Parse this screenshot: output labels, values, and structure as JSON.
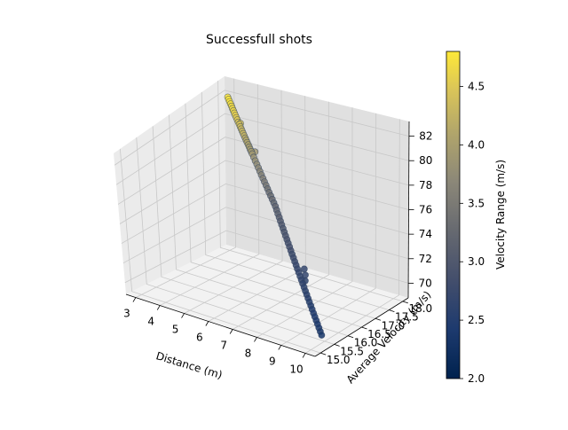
{
  "chart_data": {
    "type": "scatter",
    "projection": "3d",
    "title": "Successfull shots",
    "xlabel": "Distance (m)",
    "ylabel": "Average Velocity (m/s)",
    "zlabel": "",
    "xlim": [
      2.6,
      10.4
    ],
    "ylim": [
      14.8,
      18.2
    ],
    "zlim": [
      68.8,
      83.2
    ],
    "xticks": [
      3,
      4,
      5,
      6,
      7,
      8,
      9,
      10
    ],
    "yticks": [
      "15.0",
      "15.5",
      "16.0",
      "16.5",
      "17.0",
      "17.5",
      "18.0"
    ],
    "zticks": [
      70,
      72,
      74,
      76,
      78,
      80,
      82
    ],
    "grid": true,
    "colorbar": {
      "label": "Velocity Range (m/s)",
      "range": [
        2.0,
        4.8
      ],
      "ticks": [
        "2.0",
        "2.5",
        "3.0",
        "3.5",
        "4.0",
        "4.5"
      ],
      "colormap": "cividis"
    },
    "series": [
      {
        "points": [
          [
            3.0,
            18.0,
            82.0,
            4.8
          ],
          [
            3.08,
            17.97,
            81.9,
            4.77
          ],
          [
            3.16,
            17.94,
            81.8,
            4.74
          ],
          [
            3.24,
            17.91,
            81.7,
            4.71
          ],
          [
            3.32,
            17.88,
            81.6,
            4.68
          ],
          [
            3.4,
            17.85,
            81.5,
            4.65
          ],
          [
            3.48,
            17.82,
            81.4,
            4.62
          ],
          [
            3.56,
            17.79,
            81.3,
            4.59
          ],
          [
            3.64,
            17.76,
            81.2,
            4.56
          ],
          [
            3.72,
            17.73,
            81.1,
            4.53
          ],
          [
            3.8,
            17.7,
            81.0,
            4.5
          ],
          [
            3.88,
            17.67,
            80.9,
            4.46
          ],
          [
            3.96,
            17.64,
            80.8,
            4.42
          ],
          [
            4.04,
            17.61,
            80.7,
            4.38
          ],
          [
            4.12,
            17.58,
            80.6,
            4.34
          ],
          [
            4.2,
            17.55,
            80.5,
            4.3
          ],
          [
            4.28,
            17.52,
            80.4,
            4.26
          ],
          [
            4.36,
            17.49,
            80.3,
            4.22
          ],
          [
            4.44,
            17.46,
            80.2,
            4.18
          ],
          [
            4.52,
            17.43,
            80.1,
            4.14
          ],
          [
            4.6,
            17.4,
            80.0,
            4.1
          ],
          [
            4.68,
            17.37,
            79.9,
            4.06
          ],
          [
            4.76,
            17.34,
            79.8,
            4.02
          ],
          [
            4.84,
            17.31,
            79.7,
            3.98
          ],
          [
            4.92,
            17.28,
            79.6,
            3.94
          ],
          [
            5.0,
            17.25,
            79.5,
            3.9
          ],
          [
            5.1,
            17.22,
            79.3,
            3.85
          ],
          [
            5.2,
            17.19,
            79.1,
            3.8
          ],
          [
            5.3,
            17.16,
            78.9,
            3.75
          ],
          [
            5.4,
            17.13,
            78.7,
            3.7
          ],
          [
            5.5,
            17.1,
            78.5,
            3.65
          ],
          [
            5.6,
            17.07,
            78.3,
            3.6
          ],
          [
            5.7,
            17.04,
            78.1,
            3.55
          ],
          [
            5.8,
            17.01,
            77.9,
            3.5
          ],
          [
            5.9,
            16.98,
            77.7,
            3.45
          ],
          [
            6.0,
            16.95,
            77.5,
            3.4
          ],
          [
            6.1,
            16.92,
            77.3,
            3.36
          ],
          [
            6.2,
            16.89,
            77.1,
            3.32
          ],
          [
            6.3,
            16.86,
            76.9,
            3.28
          ],
          [
            6.4,
            16.83,
            76.7,
            3.24
          ],
          [
            6.5,
            16.8,
            76.5,
            3.2
          ],
          [
            6.6,
            16.76,
            76.3,
            3.17
          ],
          [
            6.7,
            16.72,
            76.1,
            3.14
          ],
          [
            6.8,
            16.68,
            75.9,
            3.11
          ],
          [
            6.9,
            16.64,
            75.7,
            3.08
          ],
          [
            7.0,
            16.6,
            75.5,
            3.05
          ],
          [
            7.1,
            16.56,
            75.3,
            3.02
          ],
          [
            7.2,
            16.52,
            75.1,
            2.99
          ],
          [
            7.3,
            16.48,
            74.9,
            2.96
          ],
          [
            7.4,
            16.44,
            74.7,
            2.93
          ],
          [
            7.5,
            16.4,
            74.5,
            2.9
          ],
          [
            7.6,
            16.36,
            74.3,
            2.87
          ],
          [
            7.7,
            16.32,
            74.1,
            2.84
          ],
          [
            7.8,
            16.28,
            73.9,
            2.81
          ],
          [
            7.9,
            16.24,
            73.7,
            2.78
          ],
          [
            8.0,
            16.2,
            73.5,
            2.75
          ],
          [
            8.1,
            16.16,
            73.3,
            2.73
          ],
          [
            8.2,
            16.12,
            73.1,
            2.71
          ],
          [
            8.3,
            16.08,
            72.9,
            2.69
          ],
          [
            8.4,
            16.04,
            72.7,
            2.67
          ],
          [
            8.5,
            16.0,
            72.5,
            2.65
          ],
          [
            8.6,
            15.96,
            72.3,
            2.63
          ],
          [
            8.7,
            15.92,
            72.1,
            2.61
          ],
          [
            8.8,
            15.88,
            71.9,
            2.59
          ],
          [
            8.9,
            15.84,
            71.7,
            2.57
          ],
          [
            9.0,
            15.8,
            71.5,
            2.55
          ],
          [
            9.1,
            15.76,
            71.3,
            2.53
          ],
          [
            9.2,
            15.72,
            71.1,
            2.51
          ],
          [
            9.3,
            15.68,
            70.9,
            2.49
          ],
          [
            9.4,
            15.64,
            70.7,
            2.47
          ],
          [
            9.5,
            15.6,
            70.5,
            2.45
          ],
          [
            9.6,
            15.56,
            70.3,
            2.43
          ],
          [
            9.7,
            15.52,
            70.1,
            2.41
          ],
          [
            9.8,
            15.48,
            69.9,
            2.39
          ],
          [
            9.9,
            15.44,
            69.7,
            2.37
          ],
          [
            10.0,
            15.4,
            69.5,
            2.35
          ],
          [
            8.55,
            16.1,
            72.8,
            2.66
          ],
          [
            8.45,
            16.15,
            73.2,
            2.68
          ],
          [
            8.6,
            16.05,
            72.4,
            2.62
          ],
          [
            5.05,
            17.3,
            79.6,
            3.92
          ],
          [
            4.0,
            17.65,
            80.9,
            4.44
          ]
        ]
      }
    ]
  }
}
